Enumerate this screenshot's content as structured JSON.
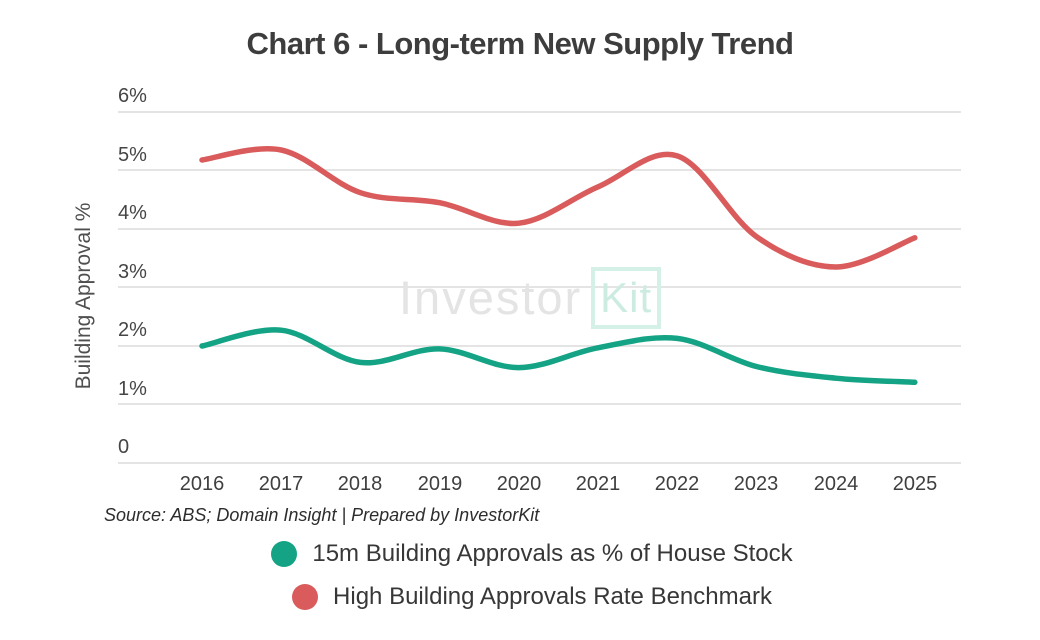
{
  "title": "Chart 6 - Long-term New Supply Trend",
  "source_note": "Source: ABS; Domain Insight | Prepared by InvestorKit",
  "watermark": {
    "part1": "Investor",
    "part2": "Kit"
  },
  "chart_data": {
    "type": "line",
    "title": "Chart 6 - Long-term New Supply Trend",
    "xlabel": "",
    "ylabel": "Building Approval %",
    "x": [
      "2016",
      "2017",
      "2018",
      "2019",
      "2020",
      "2021",
      "2022",
      "2023",
      "2024",
      "2025"
    ],
    "series": [
      {
        "name": "15m Building Approvals as % of House Stock",
        "color": "#14a384",
        "values": [
          2.0,
          2.27,
          1.72,
          1.95,
          1.63,
          1.97,
          2.13,
          1.65,
          1.45,
          1.38
        ]
      },
      {
        "name": "High Building Approvals Rate Benchmark",
        "color": "#d95b5b",
        "values": [
          5.18,
          5.35,
          4.62,
          4.45,
          4.1,
          4.72,
          5.25,
          3.87,
          3.35,
          3.85
        ]
      }
    ],
    "y_ticks": [
      "6%",
      "5%",
      "4%",
      "3%",
      "2%",
      "1%",
      "0"
    ],
    "ylim": [
      0,
      6
    ],
    "grid": true,
    "gridline_color": "#e4e4e4",
    "legend_position": "bottom"
  }
}
